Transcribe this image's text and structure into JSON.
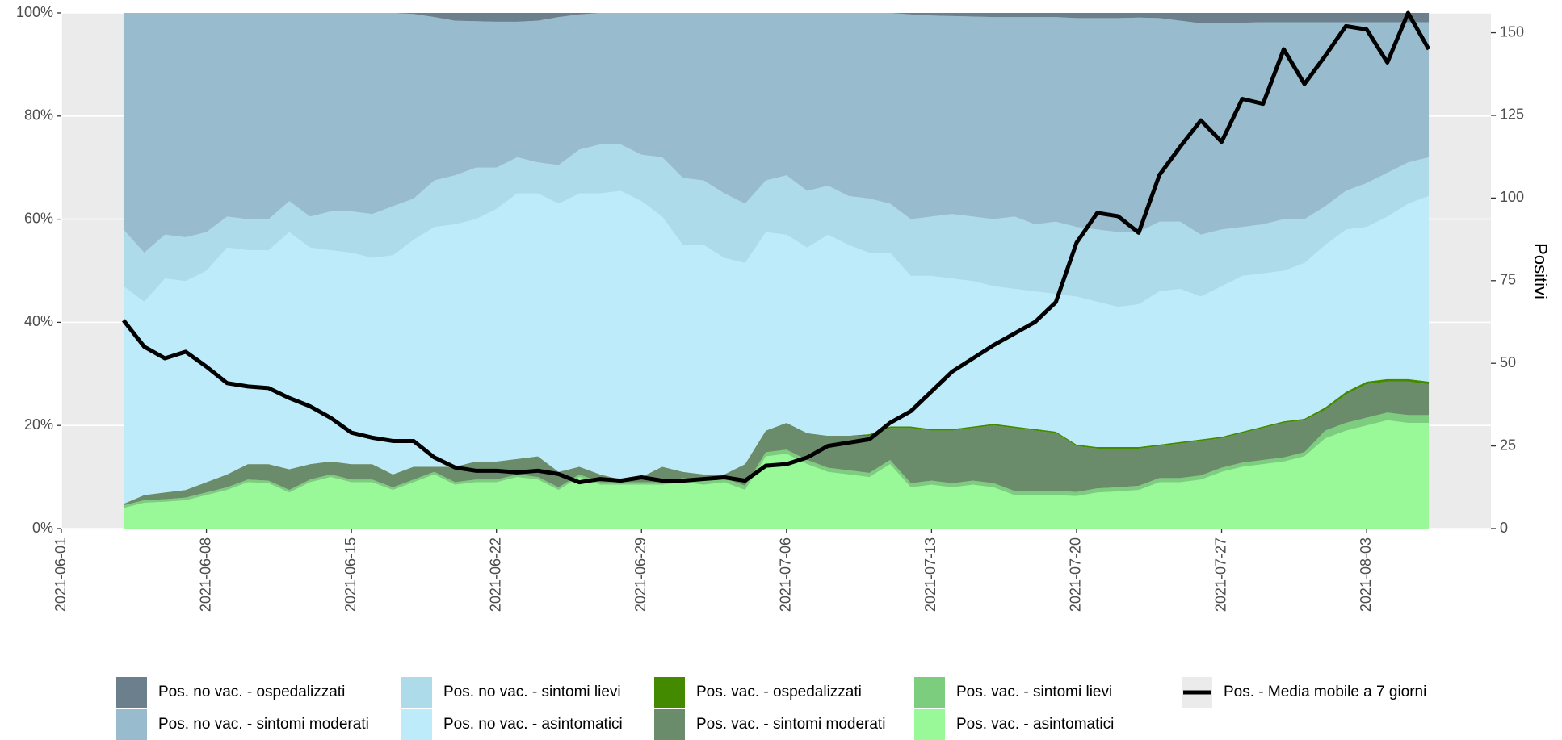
{
  "chart_data": {
    "type": "area",
    "stacked": true,
    "grid": true,
    "legend": "bottom",
    "y2label": "Positivi",
    "x": [
      "2021-06-04",
      "2021-06-05",
      "2021-06-06",
      "2021-06-07",
      "2021-06-08",
      "2021-06-09",
      "2021-06-10",
      "2021-06-11",
      "2021-06-12",
      "2021-06-13",
      "2021-06-14",
      "2021-06-15",
      "2021-06-16",
      "2021-06-17",
      "2021-06-18",
      "2021-06-19",
      "2021-06-20",
      "2021-06-21",
      "2021-06-22",
      "2021-06-23",
      "2021-06-24",
      "2021-06-25",
      "2021-06-26",
      "2021-06-27",
      "2021-06-28",
      "2021-06-29",
      "2021-06-30",
      "2021-07-01",
      "2021-07-02",
      "2021-07-03",
      "2021-07-04",
      "2021-07-05",
      "2021-07-06",
      "2021-07-07",
      "2021-07-08",
      "2021-07-09",
      "2021-07-10",
      "2021-07-11",
      "2021-07-12",
      "2021-07-13",
      "2021-07-14",
      "2021-07-15",
      "2021-07-16",
      "2021-07-17",
      "2021-07-18",
      "2021-07-19",
      "2021-07-20",
      "2021-07-21",
      "2021-07-22",
      "2021-07-23",
      "2021-07-24",
      "2021-07-25",
      "2021-07-26",
      "2021-07-27",
      "2021-07-28",
      "2021-07-29",
      "2021-07-30",
      "2021-07-31",
      "2021-08-01",
      "2021-08-02",
      "2021-08-03",
      "2021-08-04",
      "2021-08-05",
      "2021-08-06"
    ],
    "xlim": [
      "2021-06-01",
      "2021-08-09"
    ],
    "xticks": [
      "2021-06-01",
      "2021-06-08",
      "2021-06-15",
      "2021-06-22",
      "2021-06-29",
      "2021-07-06",
      "2021-07-13",
      "2021-07-20",
      "2021-07-27",
      "2021-08-03"
    ],
    "ylim": [
      0,
      100
    ],
    "yticks": [
      {
        "value": 0,
        "label": "0%"
      },
      {
        "value": 20,
        "label": "20%"
      },
      {
        "value": 40,
        "label": "40%"
      },
      {
        "value": 60,
        "label": "60%"
      },
      {
        "value": 80,
        "label": "80%"
      },
      {
        "value": 100,
        "label": "100%"
      }
    ],
    "y2lim": [
      0,
      156
    ],
    "y2ticks": [
      0,
      25,
      50,
      75,
      100,
      125,
      150
    ],
    "series": [
      {
        "name": "Pos. no vac. - ospedalizzati",
        "color": "#6b7f8c",
        "values": [
          0,
          0,
          0,
          0,
          0,
          0,
          0,
          0,
          0,
          0,
          0,
          0,
          0,
          0,
          0.2,
          0.8,
          1.5,
          1.6,
          1.7,
          1.7,
          1.5,
          0.8,
          0.3,
          0,
          0,
          0,
          0,
          0,
          0,
          0,
          0,
          0,
          0,
          0,
          0,
          0,
          0,
          0,
          0.3,
          0.5,
          0.6,
          0.7,
          0.8,
          0.8,
          0.8,
          0.8,
          1,
          1,
          1,
          0.9,
          1,
          1.5,
          2,
          2,
          1.9,
          1.8,
          1.8,
          1.8,
          1.8,
          1.8,
          1.8,
          1.8,
          1.8,
          1.8
        ]
      },
      {
        "name": "Pos. no vac. - sintomi moderati",
        "color": "#98bccd",
        "values": [
          42,
          46.5,
          43,
          43.5,
          42.5,
          39.5,
          40,
          40,
          36.5,
          39.5,
          38.5,
          38.5,
          39,
          37.5,
          35.8,
          31.7,
          30,
          28.4,
          28.3,
          26.3,
          27.5,
          28.7,
          26.2,
          25.5,
          25.5,
          27.5,
          28,
          32,
          32.5,
          35,
          37,
          32.5,
          31.5,
          34.5,
          33.5,
          35.5,
          36,
          37,
          39.7,
          39,
          38.4,
          38.8,
          39.2,
          38.7,
          40.2,
          39.7,
          40.5,
          41,
          41.5,
          41.6,
          39.5,
          39,
          41,
          40,
          39.6,
          39.2,
          38.2,
          38.2,
          35.7,
          32.7,
          31.2,
          29.2,
          27.2,
          26.2
        ]
      },
      {
        "name": "Pos. no vac. - sintomi lievi",
        "color": "#addbea",
        "values": [
          11,
          9.5,
          8.5,
          8.5,
          7.5,
          6,
          6,
          6,
          6,
          6,
          7.5,
          8,
          8.5,
          9.5,
          8,
          9,
          9.5,
          10,
          8,
          7,
          6,
          7.5,
          8.5,
          9.5,
          9,
          9,
          11.5,
          13,
          12.5,
          12.5,
          11.5,
          10,
          11.5,
          11,
          9.5,
          9.5,
          10.5,
          9.5,
          11,
          11.5,
          12.5,
          12.5,
          13,
          14,
          13,
          14,
          13.5,
          14,
          14.5,
          14,
          13.5,
          13,
          12,
          11,
          9.5,
          9.5,
          10,
          8.5,
          7.5,
          7.5,
          8.5,
          8.5,
          8,
          7.5
        ]
      },
      {
        "name": "Pos. no vac. - asintomatici",
        "color": "#bdebf9",
        "values": [
          42.2,
          37.5,
          41.5,
          40.5,
          41,
          44,
          41.5,
          41.5,
          46,
          42,
          41,
          41,
          40,
          42.5,
          44,
          46.5,
          47,
          47,
          49,
          51.5,
          51,
          52,
          53,
          54.5,
          56,
          53.5,
          48.5,
          44,
          44.5,
          42,
          39,
          38.5,
          36.5,
          36,
          39,
          37,
          35.2,
          33.7,
          29.2,
          29.7,
          29.2,
          28.2,
          26.7,
          26.7,
          26.7,
          26.7,
          28.7,
          28.2,
          27.2,
          27.7,
          29.7,
          29.7,
          27.7,
          29.2,
          30.2,
          29.7,
          29.2,
          30.2,
          31.5,
          31.5,
          30,
          31.5,
          34,
          36
        ]
      },
      {
        "name": "Pos. vac. - ospedalizzati",
        "color": "#448a00",
        "values": [
          0,
          0,
          0,
          0,
          0,
          0,
          0,
          0,
          0,
          0,
          0,
          0,
          0,
          0,
          0,
          0,
          0,
          0,
          0,
          0,
          0,
          0,
          0,
          0,
          0,
          0,
          0,
          0,
          0,
          0,
          0,
          0,
          0,
          0,
          0,
          0,
          0.3,
          0.3,
          0.3,
          0.3,
          0.3,
          0.3,
          0.3,
          0.3,
          0.3,
          0.3,
          0.3,
          0.3,
          0.3,
          0.3,
          0.3,
          0.3,
          0.3,
          0.3,
          0.3,
          0.3,
          0.3,
          0.3,
          0.5,
          0.5,
          0.5,
          0.5,
          0.5,
          0.5
        ]
      },
      {
        "name": "Pos. vac. - sintomi moderati",
        "color": "#6b8c6a",
        "values": [
          0.3,
          1,
          1.3,
          1.5,
          2,
          2.5,
          3,
          3.2,
          4,
          3,
          2.5,
          3,
          3,
          2.5,
          2.5,
          1,
          3,
          3.5,
          3.5,
          3,
          4,
          3,
          1.5,
          1.5,
          0.5,
          1,
          3,
          1.2,
          1.2,
          0.7,
          4.2,
          4.2,
          5.2,
          5.2,
          6.2,
          6.7,
          7.2,
          6.2,
          10.7,
          9.7,
          10.2,
          10.2,
          11.2,
          12.2,
          11.7,
          11.2,
          8.9,
          7.7,
          7.5,
          7.2,
          6.2,
          6.7,
          6.7,
          5.7,
          5.7,
          6.2,
          6.7,
          6.2,
          4,
          5.5,
          6.5,
          6,
          6.5,
          6
        ]
      },
      {
        "name": "Pos. vac. - sintomi lievi",
        "color": "#7dcd7f",
        "values": [
          0.5,
          0.5,
          0.5,
          0.5,
          0.5,
          0.5,
          0.5,
          0.5,
          0.5,
          0.5,
          0.5,
          0.5,
          0.5,
          0.5,
          0.5,
          0.5,
          0.5,
          0.5,
          0.5,
          0.5,
          0.5,
          0.5,
          0.5,
          0.5,
          0.5,
          0.5,
          0.5,
          0.8,
          0.8,
          0.8,
          0.8,
          0.8,
          0.8,
          0.8,
          0.8,
          0.8,
          0.8,
          0.8,
          0.8,
          0.8,
          0.8,
          0.8,
          0.8,
          0.8,
          0.8,
          0.8,
          0.8,
          0.8,
          0.8,
          0.8,
          0.8,
          0.8,
          0.8,
          0.8,
          0.8,
          0.8,
          0.8,
          0.8,
          1.5,
          1.5,
          1.5,
          1.5,
          1.5,
          1.5
        ]
      },
      {
        "name": "Pos. vac. - asintomatici",
        "color": "#99f898",
        "values": [
          4,
          5,
          5.2,
          5.5,
          6.5,
          7.5,
          9,
          8.8,
          7,
          9,
          10,
          9,
          9,
          7.5,
          9,
          10.5,
          8.5,
          9,
          9,
          10,
          9.5,
          7.5,
          10,
          8.5,
          8.5,
          8.5,
          8.5,
          9,
          8.5,
          9,
          7.5,
          14,
          14.5,
          12.5,
          11,
          10.5,
          10,
          12.5,
          8,
          8.5,
          8,
          8.5,
          8,
          6.5,
          6.5,
          6.5,
          6.3,
          7,
          7.2,
          7.5,
          9,
          9,
          9.5,
          11,
          12,
          12.5,
          13,
          14,
          17.5,
          19,
          20,
          21,
          20.5,
          20.5
        ]
      },
      {
        "name": "Pos. - Media mobile a 7 giorni",
        "color": "#000000",
        "axis": "y2",
        "type": "line",
        "values": [
          63,
          55,
          51.5,
          53.5,
          49,
          44,
          43,
          42.5,
          39.5,
          37,
          33.5,
          29,
          27.5,
          26.5,
          26.5,
          21.5,
          18.5,
          17.5,
          17.5,
          17,
          17.5,
          16.5,
          14,
          15,
          14.5,
          15.5,
          14.5,
          14.5,
          15,
          15.5,
          14.5,
          19,
          19.5,
          21.5,
          25,
          26,
          27,
          32,
          35.5,
          41.5,
          47.5,
          51.5,
          55.5,
          59,
          62.5,
          68.5,
          86.5,
          95.5,
          94.5,
          89.5,
          107,
          115.5,
          123.5,
          117,
          130,
          128.5,
          145,
          134.5,
          143,
          152,
          151,
          141,
          156,
          145
        ]
      }
    ]
  }
}
